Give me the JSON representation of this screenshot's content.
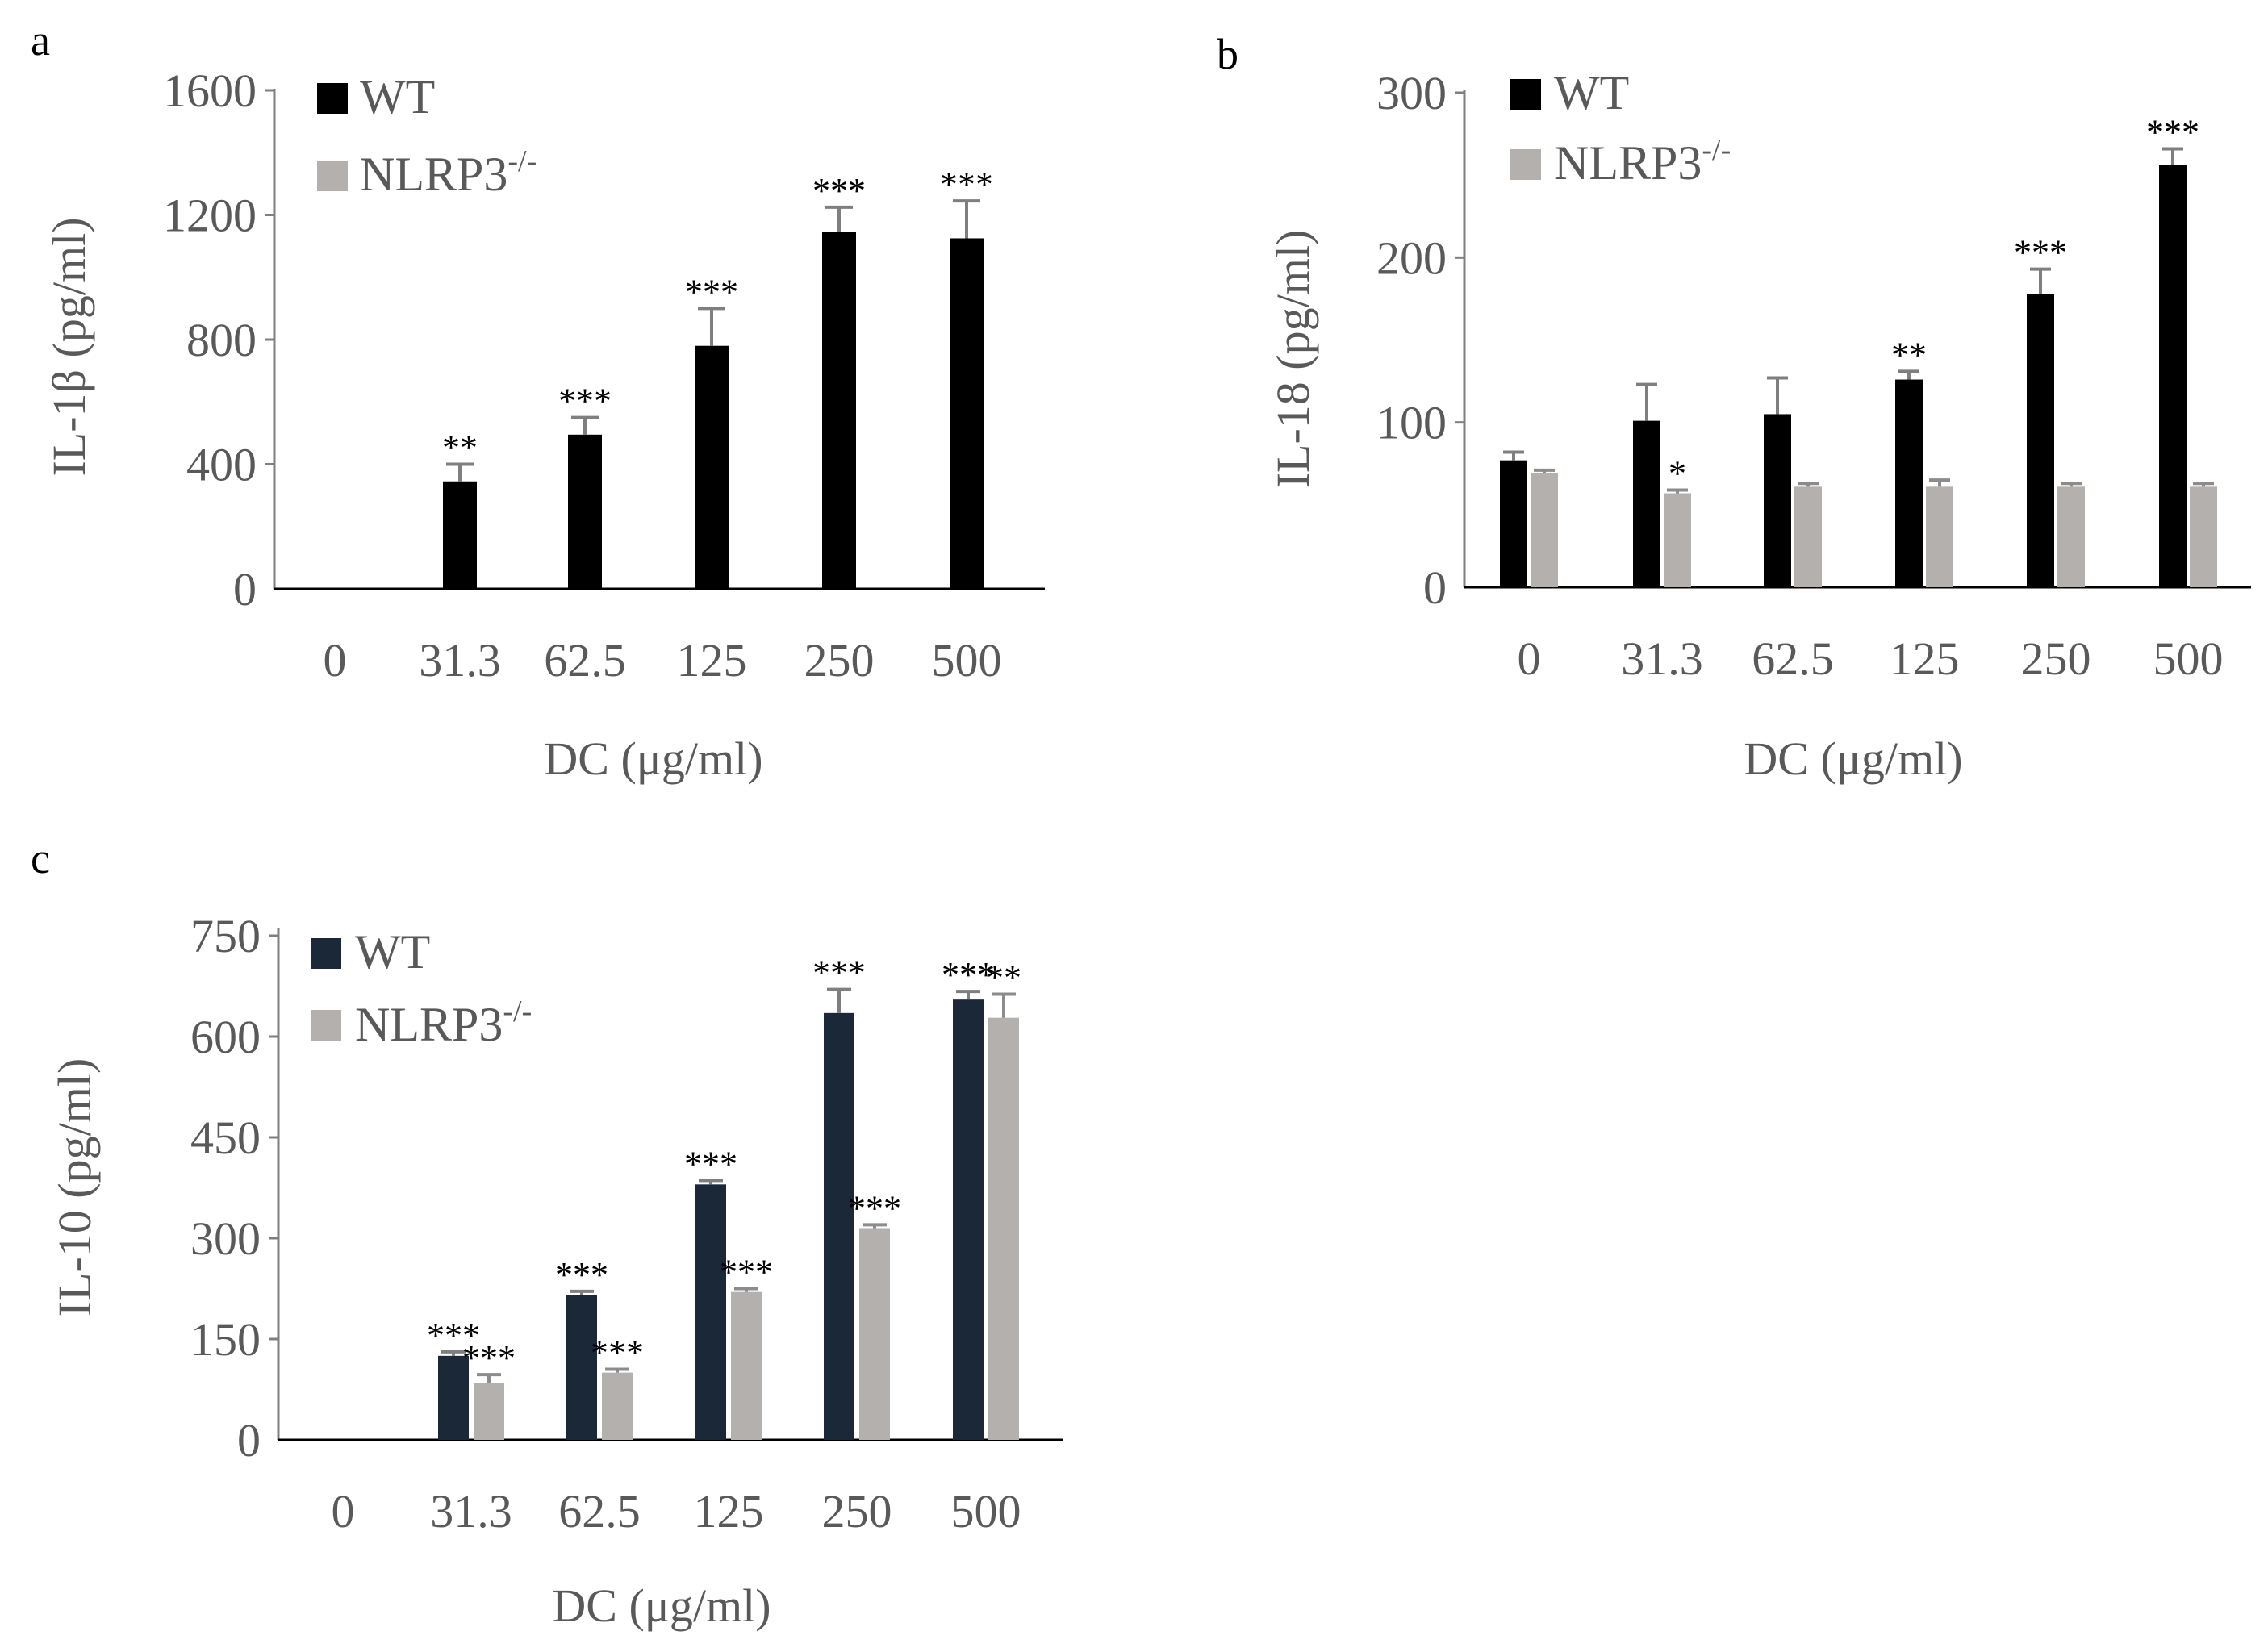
{
  "chart_data": [
    {
      "panel": "a",
      "type": "bar",
      "categories": [
        "0",
        "31.3",
        "62.5",
        "125",
        "250",
        "500"
      ],
      "series": [
        {
          "name": "WT",
          "color": "#000000",
          "values": [
            0,
            345,
            495,
            780,
            1145,
            1125
          ],
          "errors": [
            0,
            55,
            55,
            120,
            80,
            120
          ],
          "sig": [
            "",
            "**",
            "***",
            "***",
            "***",
            "***"
          ]
        },
        {
          "name": "NLRP3",
          "name_sup": "-/-",
          "color": "#b4b0ad",
          "values": [
            0,
            0,
            0,
            0,
            0,
            0
          ],
          "errors": [
            0,
            0,
            0,
            0,
            0,
            0
          ],
          "sig": [
            "",
            "",
            "",
            "",
            "",
            ""
          ]
        }
      ],
      "ylim": [
        0,
        1600
      ],
      "yticks": [
        "0",
        "400",
        "800",
        "1200",
        "1600"
      ],
      "ylabel": "IL-1β (pg/ml)",
      "xlabel": "DC (μg/ml)"
    },
    {
      "panel": "b",
      "type": "bar",
      "categories": [
        "0",
        "31.3",
        "62.5",
        "125",
        "250",
        "500"
      ],
      "series": [
        {
          "name": "WT",
          "color": "#000000",
          "values": [
            77,
            101,
            105,
            126,
            178,
            256
          ],
          "errors": [
            5,
            22,
            22,
            5,
            15,
            10
          ],
          "sig": [
            "",
            "",
            "",
            "**",
            "***",
            "***"
          ]
        },
        {
          "name": "NLRP3",
          "name_sup": "-/-",
          "color": "#b4b0ad",
          "values": [
            69,
            57,
            61,
            61,
            61,
            61
          ],
          "errors": [
            2,
            2,
            2,
            4,
            2,
            2
          ],
          "sig": [
            "",
            "*",
            "",
            "",
            "",
            ""
          ]
        }
      ],
      "ylim": [
        0,
        300
      ],
      "yticks": [
        "0",
        "100",
        "200",
        "300"
      ],
      "ylabel": "IL-18 (pg/ml)",
      "xlabel": "DC (μg/ml)"
    },
    {
      "panel": "c",
      "type": "bar",
      "categories": [
        "0",
        "31.3",
        "62.5",
        "125",
        "250",
        "500"
      ],
      "series": [
        {
          "name": "WT",
          "color": "#1b2838",
          "values": [
            0,
            125,
            215,
            380,
            635,
            655
          ],
          "errors": [
            0,
            6,
            6,
            6,
            35,
            12
          ],
          "sig": [
            "",
            "***",
            "***",
            "***",
            "***",
            "***"
          ]
        },
        {
          "name": "NLRP3",
          "name_sup": "-/-",
          "color": "#b4b0ad",
          "values": [
            0,
            85,
            100,
            220,
            315,
            628
          ],
          "errors": [
            0,
            12,
            5,
            5,
            5,
            35
          ],
          "sig": [
            "",
            "***",
            "***",
            "***",
            "***",
            "**"
          ]
        }
      ],
      "ylim": [
        0,
        750
      ],
      "yticks": [
        "0",
        "150",
        "300",
        "450",
        "600",
        "750"
      ],
      "ylabel": "IL-10 (pg/ml)",
      "xlabel": "DC (μg/ml)"
    }
  ]
}
